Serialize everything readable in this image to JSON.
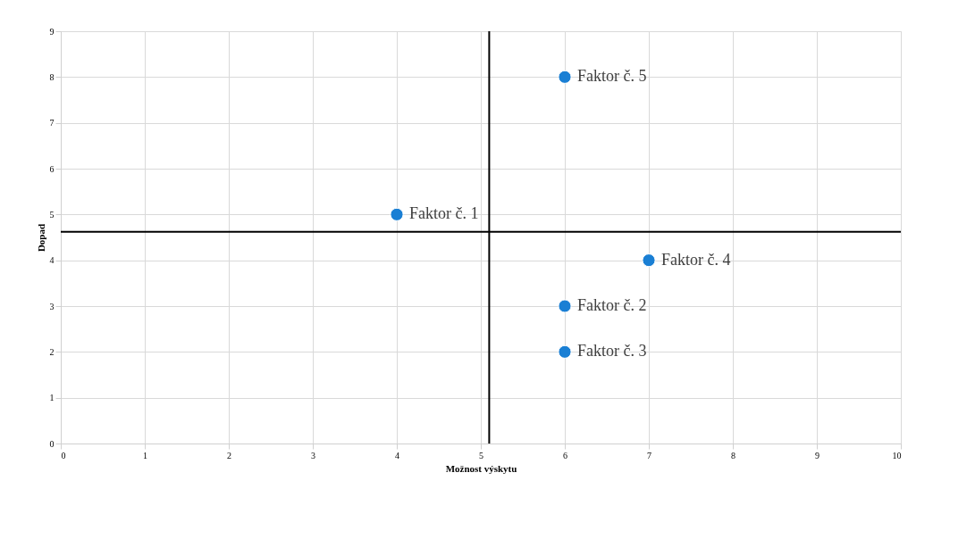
{
  "chart_data": {
    "type": "scatter",
    "xlabel": "Možnost výskytu",
    "ylabel": "Dopad",
    "x": [
      4,
      6,
      6,
      7,
      6
    ],
    "series": [
      {
        "color": "#1a7fd4",
        "values": [
          5,
          3,
          2,
          4,
          8
        ]
      }
    ],
    "annotations": [
      {
        "text": "Faktor č. 1",
        "x": 4,
        "y": 5
      },
      {
        "text": "Faktor č. 2",
        "x": 6,
        "y": 3
      },
      {
        "text": "Faktor č. 3",
        "x": 6,
        "y": 2
      },
      {
        "text": "Faktor č. 4",
        "x": 7,
        "y": 4
      },
      {
        "text": "Faktor č. 5",
        "x": 6,
        "y": 8
      }
    ],
    "ref_lines": [
      {
        "axis": "x",
        "value": 5.1,
        "color": "#000000"
      },
      {
        "axis": "y",
        "value": 4.62,
        "color": "#000000"
      }
    ],
    "xlim": [
      0,
      10
    ],
    "ylim": [
      0,
      9
    ],
    "xticks": [
      0,
      1,
      2,
      3,
      4,
      5,
      6,
      7,
      8,
      9,
      10
    ],
    "yticks": [
      0,
      1,
      2,
      3,
      4,
      5,
      6,
      7,
      8,
      9
    ],
    "grid": true,
    "marker": "circle"
  }
}
